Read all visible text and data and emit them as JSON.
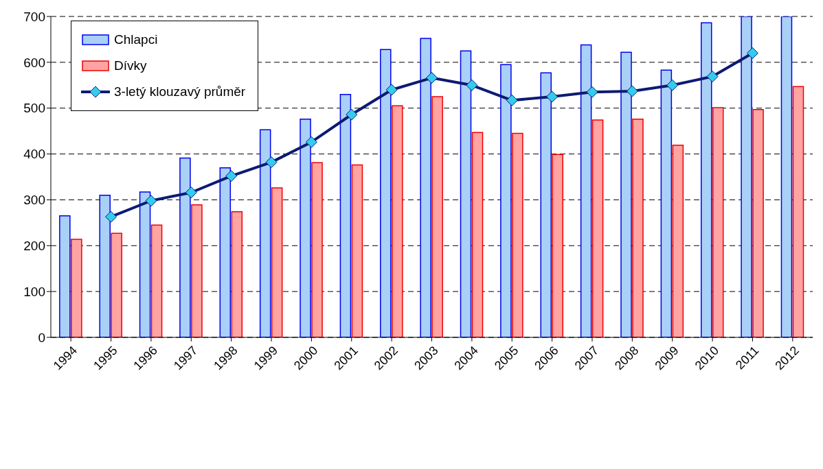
{
  "chart_data": {
    "type": "bar",
    "categories": [
      "1994",
      "1995",
      "1996",
      "1997",
      "1998",
      "1999",
      "2000",
      "2001",
      "2002",
      "2003",
      "2004",
      "2005",
      "2006",
      "2007",
      "2008",
      "2009",
      "2010",
      "2011",
      "2012"
    ],
    "series": [
      {
        "name": "Chlapci",
        "color": "#a9d0f7",
        "values": [
          265,
          310,
          317,
          391,
          370,
          453,
          476,
          530,
          628,
          652,
          625,
          595,
          577,
          638,
          622,
          583,
          686,
          700,
          700
        ]
      },
      {
        "name": "Dívky",
        "color": "#ffa3a3",
        "values": [
          214,
          227,
          245,
          289,
          274,
          326,
          381,
          376,
          505,
          525,
          447,
          445,
          399,
          474,
          476,
          419,
          501,
          497,
          547
        ]
      },
      {
        "name": "3-letý klouzavý průměr",
        "type": "line",
        "color": "#0d1a73",
        "marker": "diamond",
        "values": [
          null,
          263,
          298,
          316,
          352,
          382,
          426,
          486,
          540,
          566,
          550,
          517,
          525,
          535,
          537,
          550,
          569,
          620,
          null
        ]
      }
    ],
    "ylim": [
      0,
      700
    ],
    "yticks": [
      0,
      100,
      200,
      300,
      400,
      500,
      600,
      700
    ],
    "grid": "y",
    "legend": "top left"
  }
}
